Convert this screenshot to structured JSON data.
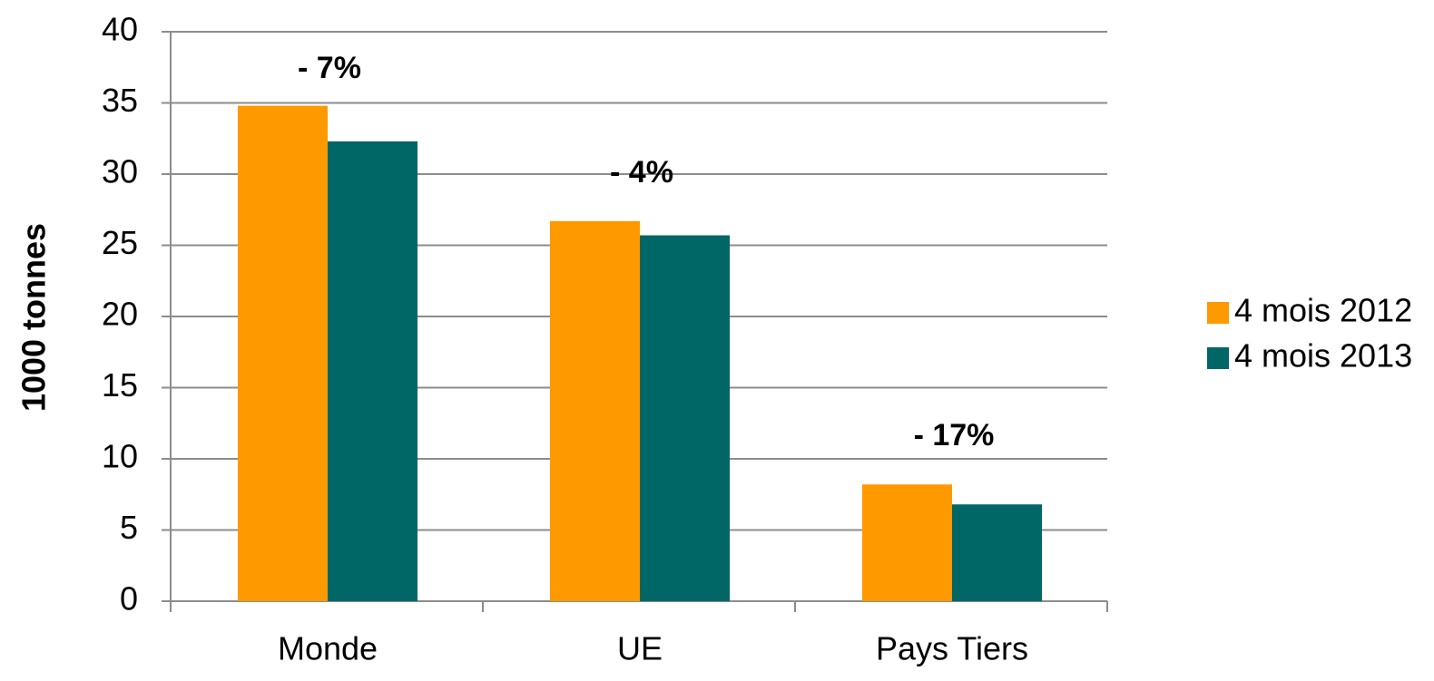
{
  "chart_data": {
    "type": "bar",
    "y_label": "1000 tonnes",
    "categories": [
      "Monde",
      "UE",
      "Pays Tiers"
    ],
    "series": [
      {
        "name": "4 mois 2012",
        "color": "#ff9900",
        "values": [
          34.8,
          26.7,
          8.2
        ]
      },
      {
        "name": "4 mois 2013",
        "color": "#006666",
        "values": [
          32.3,
          25.7,
          6.8
        ]
      }
    ],
    "annotations": [
      "- 7%",
      "- 4%",
      "- 17%"
    ],
    "ylim": [
      0,
      40
    ],
    "yticks": [
      0,
      5,
      10,
      15,
      20,
      25,
      30,
      35,
      40
    ],
    "grid": true,
    "legend": "right"
  }
}
